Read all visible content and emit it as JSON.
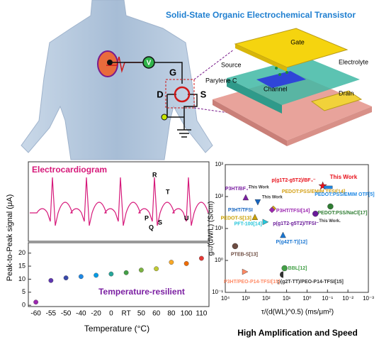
{
  "diagram": {
    "title": "Solid-State Organic Electrochemical Transistor",
    "circuit": [
      "V",
      "G",
      "D",
      "S"
    ],
    "device": [
      "Gate",
      "Electrolyte",
      "Source",
      "Parylene C",
      "Channel",
      "Drain"
    ],
    "caption": "High Amplification and Speed"
  },
  "ecg": {
    "title": "Electrocardiogram",
    "waves": [
      "P",
      "Q",
      "R",
      "S",
      "T",
      "U"
    ]
  },
  "chart_data": [
    {
      "type": "scatter",
      "annotation": "Temperature-resilient",
      "xlabel": "Temperature (°C)",
      "ylabel": "Peak-to-Peak signal (μA)",
      "categories": [
        "-60",
        "-55",
        "-50",
        "-40",
        "-20",
        "0",
        "RT",
        "50",
        "60",
        "80",
        "100",
        "110"
      ],
      "values": [
        1.2,
        9.5,
        10.5,
        11,
        11.5,
        12,
        12.5,
        13.5,
        14,
        16.5,
        16,
        18
      ],
      "colors": [
        "#9c27b0",
        "#5e35b1",
        "#3949ab",
        "#1e88e5",
        "#039be5",
        "#26a69a",
        "#43a047",
        "#7cb342",
        "#c0ca33",
        "#f9a825",
        "#ef6c00",
        "#e53935"
      ],
      "ylim": [
        -0.5,
        24
      ],
      "yticks": [
        0,
        5,
        10,
        15,
        20
      ]
    },
    {
      "type": "log-scatter",
      "xlabel": "τ/(d(WL)^0.5) (ms/μm²)",
      "ylabel": "gₘ/(dW/L) (S/cm)",
      "xlim": [
        10000,
        0.001
      ],
      "ylim": [
        0.1,
        1000
      ],
      "log": true,
      "xticks": [
        {
          "value": 10000,
          "label": "10⁴"
        },
        {
          "value": 1000,
          "label": "10³"
        },
        {
          "value": 100,
          "label": "10²"
        },
        {
          "value": 10,
          "label": "10¹"
        },
        {
          "value": 1,
          "label": "10⁰"
        },
        {
          "value": 0.1,
          "label": "10⁻¹"
        },
        {
          "value": 0.01,
          "label": "10⁻²"
        },
        {
          "value": 0.001,
          "label": "10⁻³"
        }
      ],
      "yticks": [
        {
          "value": 0.1,
          "label": "10⁻¹"
        },
        {
          "value": 1,
          "label": "10⁰"
        },
        {
          "value": 10,
          "label": "10¹"
        },
        {
          "value": 100,
          "label": "10²"
        },
        {
          "value": 1000,
          "label": "10³"
        }
      ],
      "series": [
        {
          "name": "p(g1T2-g5T2)/BF₄⁻",
          "color": "#e8101a",
          "marker": "star",
          "note": "This Work",
          "x": [
            0.17
          ],
          "values": [
            215
          ]
        },
        {
          "name": "P3HT/BF₄⁻",
          "color": "#7b1fa2",
          "marker": "triangle-up",
          "note": "This Work",
          "x": [
            1000
          ],
          "values": [
            95
          ]
        },
        {
          "name": "P3HT/TFSI",
          "color": "#1565c0",
          "marker": "triangle-down",
          "note": "This Work",
          "x": [
            257
          ],
          "values": [
            66
          ]
        },
        {
          "name": "PEDOT:PSS/EMIM TFSI[14]",
          "color": "#d4a017",
          "marker": "diamond",
          "x": [
            45
          ],
          "values": [
            42
          ]
        },
        {
          "name": "P3HT/TFSI[14]",
          "color": "#9c27b0",
          "marker": "diamond",
          "x": [
            52
          ],
          "values": [
            38
          ]
        },
        {
          "name": "PEDOT:PSS/EMIM OTF[5]",
          "color": "#1e88e5",
          "marker": "square",
          "x": [
            0.093
          ],
          "values": [
            195
          ]
        },
        {
          "name": "PEDOT:PSS/NaCl[17]",
          "color": "#2e7d32",
          "marker": "circle",
          "x": [
            0.072
          ],
          "values": [
            49
          ]
        },
        {
          "name": "p(g1T2-g5T2)/TFSI⁻",
          "color": "#6a1b9a",
          "marker": "circle",
          "note": "This Work.",
          "x": [
            0.39
          ],
          "values": [
            29
          ]
        },
        {
          "name": "PEDOT-S[13]",
          "color": "#c9a000",
          "marker": "triangle-up",
          "x": [
            355
          ],
          "values": [
            23
          ]
        },
        {
          "name": "PFT-100[14]",
          "color": "#26c6da",
          "marker": "triangle-right",
          "x": [
            107
          ],
          "values": [
            16
          ]
        },
        {
          "name": "P(g42T-T)[12]",
          "color": "#1976d2",
          "marker": "triangle-up",
          "x": [
            15
          ],
          "values": [
            6.3
          ]
        },
        {
          "name": "PTEB-S[13]",
          "color": "#6d4c41",
          "marker": "circle",
          "x": [
            3300
          ],
          "values": [
            2.8
          ]
        },
        {
          "name": "BBL[12]",
          "color": "#43a047",
          "marker": "circle",
          "x": [
            12.6
          ],
          "values": [
            0.57
          ]
        },
        {
          "name": "p(g2T-TT)/PEO-P14-TFSI[15]",
          "color": "#333333",
          "marker": "half-circle",
          "x": [
            15
          ],
          "values": [
            0.36
          ]
        },
        {
          "name": "P3HT/PEO-P14-TFSI[15]",
          "color": "#ff8a65",
          "marker": "triangle-right",
          "x": [
            1070
          ],
          "values": [
            0.44
          ]
        }
      ]
    }
  ]
}
